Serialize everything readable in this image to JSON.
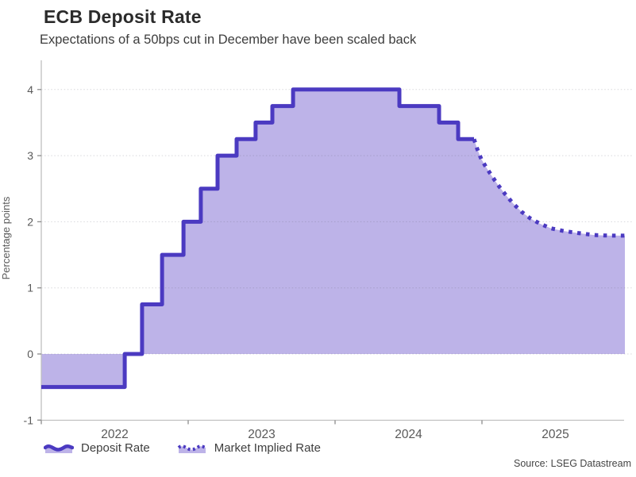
{
  "header": {
    "title": "ECB Deposit Rate",
    "subtitle": "Expectations of a 50bps cut in December have been scaled back"
  },
  "legend": [
    {
      "label": "Deposit Rate",
      "style": "solid"
    },
    {
      "label": "Market Implied Rate",
      "style": "dotted"
    }
  ],
  "source": "Source: LSEG Datastream",
  "colors": {
    "line": "#4b3ac1",
    "fill": "#bdb3e8",
    "grid": "rgba(100,100,115,0.25)",
    "axis": "#c0c0c0",
    "tick": "#8c8c8c",
    "text": "#595959",
    "axis_title": "#5a5a5a"
  },
  "chart_data": {
    "type": "line",
    "title": "ECB Deposit Rate",
    "xlabel": "",
    "ylabel": "Percentage points",
    "x_ticks": [
      2022,
      2023,
      2024,
      2025
    ],
    "x_boundaries": [
      2022,
      2023,
      2024,
      2025,
      2026
    ],
    "x_range": [
      2022.0,
      2025.973
    ],
    "y_ticks": [
      -1,
      0,
      1,
      2,
      3,
      4
    ],
    "ylim": [
      -1,
      4.32
    ],
    "grid": "dotted-horizontal",
    "legend_position": "bottom-left",
    "series": [
      {
        "name": "Deposit Rate",
        "style": "solid-step",
        "points": [
          [
            2022.0,
            -0.5
          ],
          [
            2022.568,
            0.0
          ],
          [
            2022.686,
            0.75
          ],
          [
            2022.822,
            1.5
          ],
          [
            2022.968,
            2.0
          ],
          [
            2023.086,
            2.5
          ],
          [
            2023.2,
            3.0
          ],
          [
            2023.33,
            3.25
          ],
          [
            2023.459,
            3.5
          ],
          [
            2023.573,
            3.75
          ],
          [
            2023.714,
            4.0
          ],
          [
            2024.438,
            3.75
          ],
          [
            2024.708,
            3.5
          ],
          [
            2024.838,
            3.25
          ],
          [
            2024.946,
            3.25
          ]
        ]
      },
      {
        "name": "Market Implied Rate",
        "style": "dotted",
        "points": [
          [
            2024.946,
            3.25
          ],
          [
            2024.968,
            3.1
          ],
          [
            2024.995,
            2.95
          ],
          [
            2025.027,
            2.83
          ],
          [
            2025.065,
            2.7
          ],
          [
            2025.108,
            2.56
          ],
          [
            2025.157,
            2.42
          ],
          [
            2025.211,
            2.28
          ],
          [
            2025.27,
            2.15
          ],
          [
            2025.33,
            2.05
          ],
          [
            2025.395,
            1.97
          ],
          [
            2025.47,
            1.9
          ],
          [
            2025.557,
            1.86
          ],
          [
            2025.654,
            1.83
          ],
          [
            2025.762,
            1.8
          ],
          [
            2025.87,
            1.79
          ],
          [
            2025.973,
            1.79
          ]
        ]
      }
    ]
  }
}
